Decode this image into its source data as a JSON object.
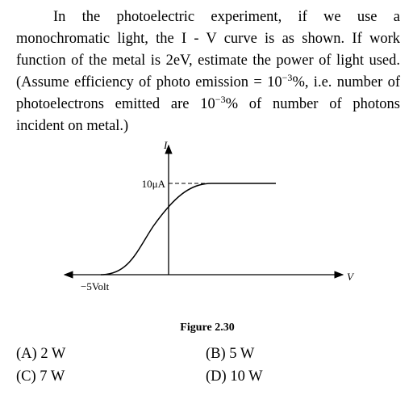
{
  "question": {
    "text_parts": [
      "In the photoelectric experiment, if we use a monochromatic light, the I - V curve is as shown. If work function of the metal is 2eV, estimate the power of light used. (Assume efficiency of photo emission = 10",
      "−3",
      "%, i.e. number of photoelectrons emitted are 10",
      "−3",
      "% of number of photons incident on metal.)"
    ]
  },
  "figure": {
    "y_axis_label": "I",
    "x_axis_label": "V",
    "current_label": "10μA",
    "voltage_label": "−5Volt",
    "caption": "Figure 2.30"
  },
  "options": [
    {
      "label": "(A)",
      "text": "2 W"
    },
    {
      "label": "(B)",
      "text": "5 W"
    },
    {
      "label": "(C)",
      "text": "7 W"
    },
    {
      "label": "(D)",
      "text": "10 W"
    }
  ]
}
